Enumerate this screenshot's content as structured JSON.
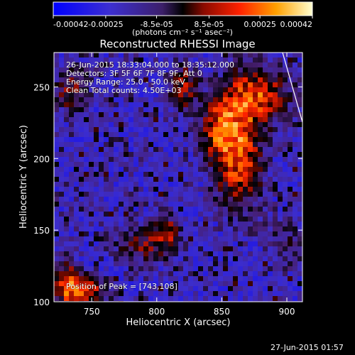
{
  "chart_data": {
    "type": "heatmap",
    "title": "Reconstructed RHESSI Image",
    "xlabel": "Heliocentric X (arcsec)",
    "ylabel": "Heliocentric Y (arcsec)",
    "xlim": [
      721,
      912
    ],
    "ylim": [
      100,
      274
    ],
    "xticks": [
      750,
      800,
      850,
      900
    ],
    "yticks": [
      100,
      150,
      200,
      250
    ],
    "colorbar": {
      "min": -0.00042,
      "max": 0.00042,
      "ticks": [
        "-0.00042",
        "-0.00025",
        "-8.5e-05",
        "8.5e-05",
        "0.00025",
        "0.00042"
      ],
      "tick_values": [
        -0.00042,
        -0.00025,
        -8.5e-05,
        8.5e-05,
        0.00025,
        0.00042
      ],
      "unit_label": "(photons cm⁻² s⁻¹ asec⁻²)"
    },
    "annotations": {
      "time": "26-Jun-2015 18:33:04.000 to 18:35:12.000",
      "detectors": "Detectors: 3F 5F 6F 7F 8F 9F, Att 0",
      "energy": "Energy Range: 25.0 - 50.0 keV",
      "clean": "Clean    Total counts: 4.50E+03",
      "peak": "Position of Peak = [743,108]"
    },
    "sources": [
      {
        "x": 862,
        "y": 205,
        "sx": 14,
        "sy": 30,
        "amp": 1.0
      },
      {
        "x": 880,
        "y": 245,
        "sx": 18,
        "sy": 14,
        "amp": 0.75
      },
      {
        "x": 845,
        "y": 222,
        "sx": 10,
        "sy": 14,
        "amp": 0.55
      },
      {
        "x": 820,
        "y": 250,
        "sx": 8,
        "sy": 12,
        "amp": 0.7
      },
      {
        "x": 735,
        "y": 248,
        "sx": 10,
        "sy": 12,
        "amp": 0.65
      },
      {
        "x": 743,
        "y": 108,
        "sx": 14,
        "sy": 8,
        "amp": 0.85
      },
      {
        "x": 790,
        "y": 140,
        "sx": 18,
        "sy": 10,
        "amp": 0.55
      },
      {
        "x": 808,
        "y": 150,
        "sx": 7,
        "sy": 10,
        "amp": 0.5
      },
      {
        "x": 730,
        "y": 115,
        "sx": 8,
        "sy": 12,
        "amp": 0.6
      },
      {
        "x": 900,
        "y": 140,
        "sx": 12,
        "sy": 14,
        "amp": 0.35
      }
    ],
    "limb_line": [
      [
        907,
        274
      ],
      [
        912,
        266
      ]
    ]
  },
  "footer": {
    "timestamp": "27-Jun-2015 01:57"
  },
  "colors": {
    "background": "#000000",
    "foreground": "#ffffff"
  }
}
